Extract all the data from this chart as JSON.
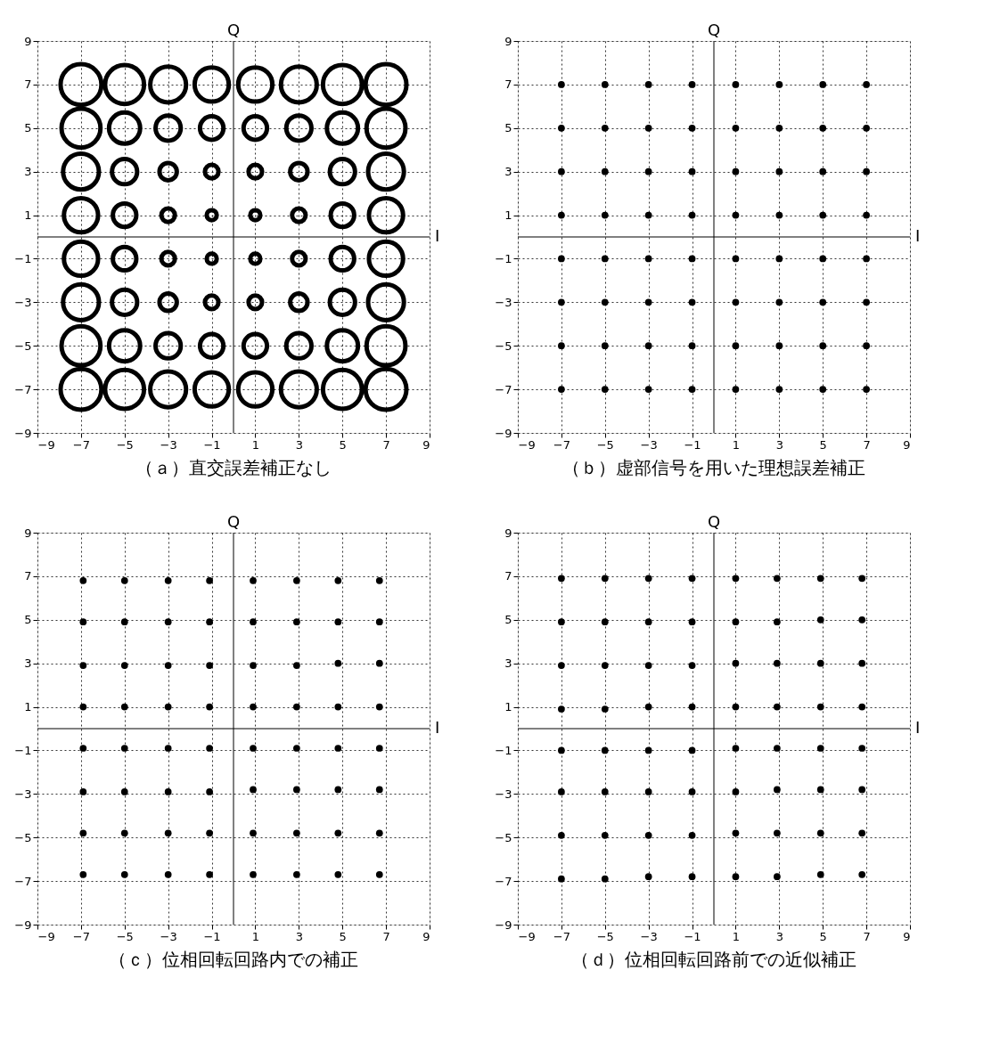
{
  "chart_data": [
    {
      "type": "bubble",
      "title": "（ａ）直交誤差補正なし",
      "xlim": [
        -9,
        9
      ],
      "ylim": [
        -9,
        9
      ],
      "xticks": [
        -9,
        -7,
        -5,
        -3,
        -1,
        1,
        3,
        5,
        7,
        9
      ],
      "yticks": [
        -9,
        -7,
        -5,
        -3,
        -1,
        1,
        3,
        5,
        7,
        9
      ],
      "grid": true,
      "marker": "circle",
      "color": "#000000",
      "ref_lines": [
        {
          "axis": "x",
          "value": 0,
          "label": "Q"
        },
        {
          "axis": "y",
          "value": 0,
          "label": "I"
        }
      ],
      "x": [
        -7,
        -5,
        -3,
        -1,
        1,
        3,
        5,
        7,
        -7,
        -5,
        -3,
        -1,
        1,
        3,
        5,
        7,
        -7,
        -5,
        -3,
        -1,
        1,
        3,
        5,
        7,
        -7,
        -5,
        -3,
        -1,
        1,
        3,
        5,
        7,
        -7,
        -5,
        -3,
        -1,
        1,
        3,
        5,
        7,
        -7,
        -5,
        -3,
        -1,
        1,
        3,
        5,
        7,
        -7,
        -5,
        -3,
        -1,
        1,
        3,
        5,
        7,
        -7,
        -5,
        -3,
        -1,
        1,
        3,
        5,
        7
      ],
      "values": [
        7,
        7,
        7,
        7,
        7,
        7,
        7,
        7,
        5,
        5,
        5,
        5,
        5,
        5,
        5,
        5,
        3,
        3,
        3,
        3,
        3,
        3,
        3,
        3,
        1,
        1,
        1,
        1,
        1,
        1,
        1,
        1,
        -1,
        -1,
        -1,
        -1,
        -1,
        -1,
        -1,
        -1,
        -3,
        -3,
        -3,
        -3,
        -3,
        -3,
        -3,
        -3,
        -5,
        -5,
        -5,
        -5,
        -5,
        -5,
        -5,
        -5,
        -7,
        -7,
        -7,
        -7,
        -7,
        -7,
        -7,
        -7
      ],
      "sizes": [
        1,
        0.91,
        0.77,
        0.7,
        0.7,
        0.77,
        0.91,
        1,
        0.91,
        0.58,
        0.38,
        0.33,
        0.33,
        0.38,
        0.58,
        0.91,
        0.77,
        0.38,
        0.18,
        0.11,
        0.11,
        0.18,
        0.38,
        0.77,
        0.7,
        0.33,
        0.11,
        0.06,
        0.06,
        0.11,
        0.33,
        0.7,
        0.7,
        0.33,
        0.11,
        0.06,
        0.06,
        0.11,
        0.33,
        0.7,
        0.77,
        0.38,
        0.18,
        0.11,
        0.11,
        0.18,
        0.38,
        0.77,
        0.91,
        0.58,
        0.38,
        0.33,
        0.33,
        0.38,
        0.58,
        0.91,
        1,
        0.91,
        0.77,
        0.7,
        0.7,
        0.77,
        0.91,
        1
      ]
    },
    {
      "type": "scatter",
      "title": "（ｂ）虚部信号を用いた理想誤差補正",
      "xlim": [
        -9,
        9
      ],
      "ylim": [
        -9,
        9
      ],
      "xticks": [
        -9,
        -7,
        -5,
        -3,
        -1,
        1,
        3,
        5,
        7,
        9
      ],
      "yticks": [
        -9,
        -7,
        -5,
        -3,
        -1,
        1,
        3,
        5,
        7,
        9
      ],
      "grid": true,
      "marker": "circle",
      "color": "#000000",
      "ref_lines": [
        {
          "axis": "x",
          "value": 0,
          "label": "Q"
        },
        {
          "axis": "y",
          "value": 0,
          "label": "I"
        }
      ],
      "x": [
        -7,
        -5,
        -3,
        -1,
        1,
        3,
        5,
        7,
        -7,
        -5,
        -3,
        -1,
        1,
        3,
        5,
        7,
        -7,
        -5,
        -3,
        -1,
        1,
        3,
        5,
        7,
        -7,
        -5,
        -3,
        -1,
        1,
        3,
        5,
        7,
        -7,
        -5,
        -3,
        -1,
        1,
        3,
        5,
        7,
        -7,
        -5,
        -3,
        -1,
        1,
        3,
        5,
        7,
        -7,
        -5,
        -3,
        -1,
        1,
        3,
        5,
        7,
        -7,
        -5,
        -3,
        -1,
        1,
        3,
        5,
        7
      ],
      "values": [
        7,
        7,
        7,
        7,
        7,
        7,
        7,
        7,
        5,
        5,
        5,
        5,
        5,
        5,
        5,
        5,
        3,
        3,
        3,
        3,
        3,
        3,
        3,
        3,
        1,
        1,
        1,
        1,
        1,
        1,
        1,
        1,
        -1,
        -1,
        -1,
        -1,
        -1,
        -1,
        -1,
        -1,
        -3,
        -3,
        -3,
        -3,
        -3,
        -3,
        -3,
        -3,
        -5,
        -5,
        -5,
        -5,
        -5,
        -5,
        -5,
        -5,
        -7,
        -7,
        -7,
        -7,
        -7,
        -7,
        -7,
        -7
      ]
    },
    {
      "type": "scatter",
      "title": "（ｃ）位相回転回路内での補正",
      "xlim": [
        -9,
        9
      ],
      "ylim": [
        -9,
        9
      ],
      "xticks": [
        -9,
        -7,
        -5,
        -3,
        -1,
        1,
        3,
        5,
        7,
        9
      ],
      "yticks": [
        -9,
        -7,
        -5,
        -3,
        -1,
        1,
        3,
        5,
        7,
        9
      ],
      "grid": true,
      "marker": "circle",
      "color": "#000000",
      "ref_lines": [
        {
          "axis": "x",
          "value": 0,
          "label": "Q"
        },
        {
          "axis": "y",
          "value": 0,
          "label": "I"
        }
      ],
      "x": [
        -6.9,
        -5,
        -3,
        -1.1,
        0.9,
        2.9,
        4.8,
        6.7,
        -6.9,
        -5,
        -3,
        -1.1,
        0.9,
        2.9,
        4.8,
        6.7,
        -6.9,
        -5,
        -3,
        -1.1,
        0.9,
        2.9,
        4.8,
        6.7,
        -6.9,
        -5,
        -3,
        -1.1,
        0.9,
        2.9,
        4.8,
        6.7,
        -6.9,
        -5,
        -3,
        -1.1,
        0.9,
        2.9,
        4.8,
        6.7,
        -6.9,
        -5,
        -3,
        -1.1,
        0.9,
        2.9,
        4.8,
        6.7,
        -6.9,
        -5,
        -3,
        -1.1,
        0.9,
        2.9,
        4.8,
        6.7,
        -6.9,
        -5,
        -3,
        -1.1,
        0.9,
        2.9,
        4.8,
        6.7
      ],
      "values": [
        6.8,
        6.8,
        6.8,
        6.8,
        6.8,
        6.8,
        6.8,
        6.8,
        4.9,
        4.9,
        4.9,
        4.9,
        4.9,
        4.9,
        4.9,
        4.9,
        2.9,
        2.9,
        2.9,
        2.9,
        2.9,
        2.9,
        3,
        3,
        1,
        1,
        1,
        1,
        1,
        1,
        1,
        1,
        -0.9,
        -0.9,
        -0.9,
        -0.9,
        -0.9,
        -0.9,
        -0.9,
        -0.9,
        -2.9,
        -2.9,
        -2.9,
        -2.9,
        -2.8,
        -2.8,
        -2.8,
        -2.8,
        -4.8,
        -4.8,
        -4.8,
        -4.8,
        -4.8,
        -4.8,
        -4.8,
        -4.8,
        -6.7,
        -6.7,
        -6.7,
        -6.7,
        -6.7,
        -6.7,
        -6.7,
        -6.7
      ]
    },
    {
      "type": "scatter",
      "title": "（ｄ）位相回転回路前での近似補正",
      "xlim": [
        -9,
        9
      ],
      "ylim": [
        -9,
        9
      ],
      "xticks": [
        -9,
        -7,
        -5,
        -3,
        -1,
        1,
        3,
        5,
        7,
        9
      ],
      "yticks": [
        -9,
        -7,
        -5,
        -3,
        -1,
        1,
        3,
        5,
        7,
        9
      ],
      "grid": true,
      "marker": "circle",
      "color": "#000000",
      "ref_lines": [
        {
          "axis": "x",
          "value": 0,
          "label": "Q"
        },
        {
          "axis": "y",
          "value": 0,
          "label": "I"
        }
      ],
      "x": [
        -7,
        -5,
        -3,
        -1,
        1,
        2.9,
        4.9,
        6.8,
        -7,
        -5,
        -3,
        -1,
        1,
        2.9,
        4.9,
        6.8,
        -7,
        -5,
        -3,
        -1,
        1,
        2.9,
        4.9,
        6.8,
        -7,
        -5,
        -3,
        -1,
        1,
        2.9,
        4.9,
        6.8,
        -7,
        -5,
        -3,
        -1,
        1,
        2.9,
        4.9,
        6.8,
        -7,
        -5,
        -3,
        -1,
        1,
        2.9,
        4.9,
        6.8,
        -7,
        -5,
        -3,
        -1,
        1,
        2.9,
        4.9,
        6.8,
        -7,
        -5,
        -3,
        -1,
        1,
        2.9,
        4.9,
        6.8
      ],
      "values": [
        6.9,
        6.9,
        6.9,
        6.9,
        6.9,
        6.9,
        6.9,
        6.9,
        4.9,
        4.9,
        4.9,
        4.9,
        4.9,
        4.9,
        5,
        5,
        2.9,
        2.9,
        2.9,
        2.9,
        3,
        3,
        3,
        3,
        0.9,
        0.9,
        1,
        1,
        1,
        1,
        1,
        1,
        -1,
        -1,
        -1,
        -1,
        -0.9,
        -0.9,
        -0.9,
        -0.9,
        -2.9,
        -2.9,
        -2.9,
        -2.9,
        -2.9,
        -2.8,
        -2.8,
        -2.8,
        -4.9,
        -4.9,
        -4.9,
        -4.9,
        -4.8,
        -4.8,
        -4.8,
        -4.8,
        -6.9,
        -6.9,
        -6.8,
        -6.8,
        -6.8,
        -6.8,
        -6.7,
        -6.7
      ]
    }
  ]
}
